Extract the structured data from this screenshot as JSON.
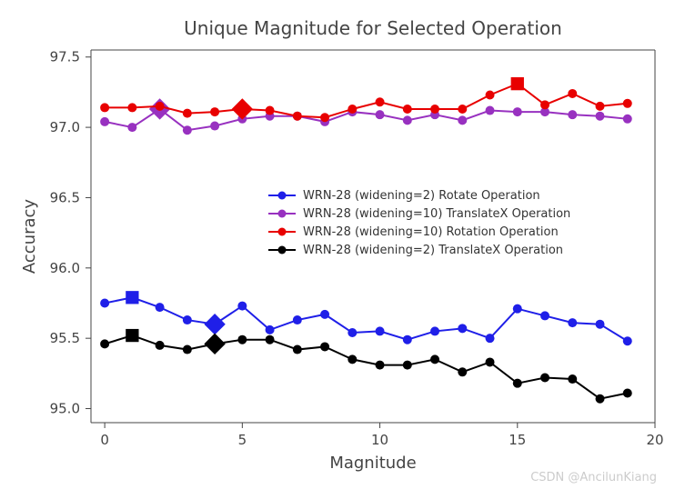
{
  "chart": {
    "type": "line",
    "title": "Unique Magnitude for Selected Operation",
    "title_fontsize": 20,
    "title_color": "#444444",
    "xlabel": "Magnitude",
    "ylabel": "Accuracy",
    "label_fontsize": 18,
    "label_color": "#444444",
    "xlim": [
      -0.5,
      20
    ],
    "ylim": [
      94.9,
      97.55
    ],
    "xtick_step": 5,
    "xticks": [
      0,
      5,
      10,
      15,
      20
    ],
    "yticks": [
      95.0,
      95.5,
      96.0,
      96.5,
      97.0,
      97.5
    ],
    "tick_fontsize": 15,
    "tick_color": "#444444",
    "background_color": "#ffffff",
    "series": [
      {
        "name": "WRN-28 (widening=2) Rotate Operation",
        "color": "#1f1fe8",
        "marker": "circle",
        "marker_size": 5,
        "line_width": 2,
        "x": [
          0,
          1,
          2,
          3,
          4,
          5,
          6,
          7,
          8,
          9,
          10,
          11,
          12,
          13,
          14,
          15,
          16,
          17,
          18,
          19
        ],
        "y": [
          95.75,
          95.79,
          95.72,
          95.63,
          95.6,
          95.73,
          95.56,
          95.63,
          95.67,
          95.54,
          95.55,
          95.49,
          95.55,
          95.57,
          95.5,
          95.71,
          95.66,
          95.61,
          95.6,
          95.48
        ],
        "highlight": {
          "1": "square",
          "4": "diamond"
        }
      },
      {
        "name": "WRN-28 (widening=10) TranslateX Operation",
        "color": "#9831c0",
        "marker": "circle",
        "marker_size": 5,
        "line_width": 2,
        "x": [
          0,
          1,
          2,
          3,
          4,
          5,
          6,
          7,
          8,
          9,
          10,
          11,
          12,
          13,
          14,
          15,
          16,
          17,
          18,
          19
        ],
        "y": [
          97.04,
          97.0,
          97.13,
          96.98,
          97.01,
          97.06,
          97.08,
          97.08,
          97.04,
          97.11,
          97.09,
          97.05,
          97.09,
          97.05,
          97.12,
          97.11,
          97.11,
          97.09,
          97.08,
          97.06
        ],
        "highlight": {
          "2": "diamond"
        }
      },
      {
        "name": "WRN-28 (widening=10) Rotation Operation",
        "color": "#e80000",
        "marker": "circle",
        "marker_size": 5,
        "line_width": 2,
        "x": [
          0,
          1,
          2,
          3,
          4,
          5,
          6,
          7,
          8,
          9,
          10,
          11,
          12,
          13,
          14,
          15,
          16,
          17,
          18,
          19
        ],
        "y": [
          97.14,
          97.14,
          97.15,
          97.1,
          97.11,
          97.13,
          97.12,
          97.08,
          97.07,
          97.13,
          97.18,
          97.13,
          97.13,
          97.13,
          97.23,
          97.31,
          97.16,
          97.24,
          97.15,
          97.17
        ],
        "highlight": {
          "5": "diamond",
          "15": "square"
        }
      },
      {
        "name": "WRN-28 (widening=2) TranslateX Operation",
        "color": "#000000",
        "marker": "circle",
        "marker_size": 5,
        "line_width": 2,
        "x": [
          0,
          1,
          2,
          3,
          4,
          5,
          6,
          7,
          8,
          9,
          10,
          11,
          12,
          13,
          14,
          15,
          16,
          17,
          18,
          19
        ],
        "y": [
          95.46,
          95.52,
          95.45,
          95.42,
          95.46,
          95.49,
          95.49,
          95.42,
          95.44,
          95.35,
          95.31,
          95.31,
          95.35,
          95.26,
          95.33,
          95.18,
          95.22,
          95.21,
          95.07,
          95.11
        ],
        "highlight": {
          "1": "square",
          "4": "diamond"
        }
      }
    ],
    "legend": {
      "position": "center-right",
      "fontsize": 13,
      "marker_show": "circle",
      "order": [
        0,
        1,
        2,
        3
      ]
    }
  },
  "watermark": "CSDN @AncilunKiang"
}
